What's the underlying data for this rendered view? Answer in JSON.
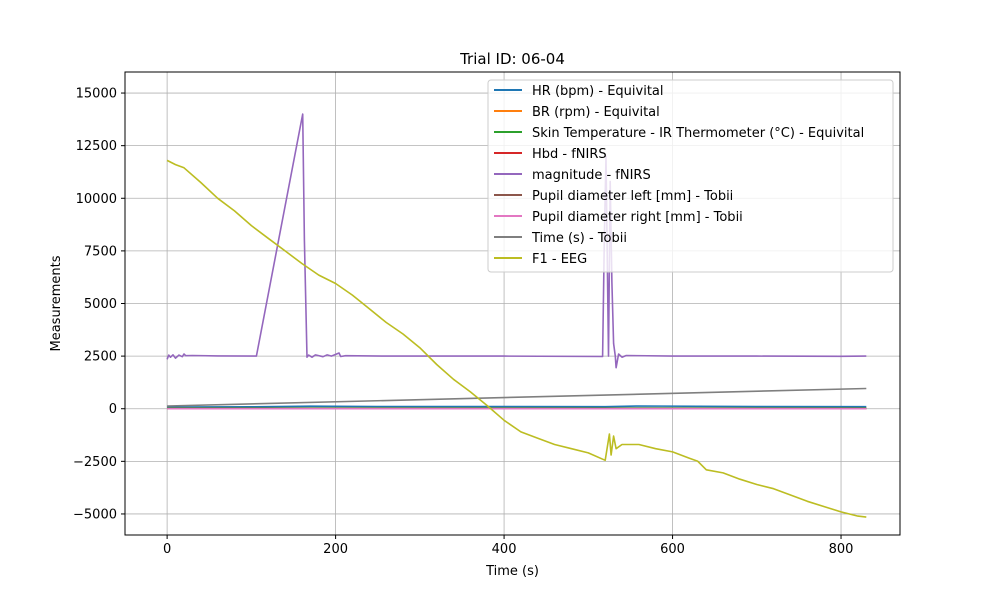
{
  "chart_data": {
    "type": "line",
    "title": "Trial ID: 06-04",
    "xlabel": "Time (s)",
    "ylabel": "Measurements",
    "xlim": [
      -50,
      870
    ],
    "ylim": [
      -6000,
      16000
    ],
    "xticks": [
      0,
      200,
      400,
      600,
      800
    ],
    "yticks": [
      -5000,
      -2500,
      0,
      2500,
      5000,
      7500,
      10000,
      12500,
      15000
    ],
    "xtick_labels": [
      "0",
      "200",
      "400",
      "600",
      "800"
    ],
    "ytick_labels": [
      "−5000",
      "−2500",
      "0",
      "2500",
      "5000",
      "7500",
      "10000",
      "12500",
      "15000"
    ],
    "grid": true,
    "legend_position": "top-right",
    "series": [
      {
        "name": "HR (bpm) - Equivital",
        "color": "#1f77b4",
        "x": [
          0,
          100,
          170,
          250,
          400,
          520,
          560,
          700,
          830
        ],
        "y": [
          80,
          90,
          120,
          105,
          100,
          95,
          130,
          100,
          95
        ]
      },
      {
        "name": "BR (rpm) - Equivital",
        "color": "#ff7f0e",
        "x": [
          0,
          830
        ],
        "y": [
          20,
          20
        ]
      },
      {
        "name": "Skin Temperature - IR Thermometer (°C) - Equivital",
        "color": "#2ca02c",
        "x": [
          0,
          830
        ],
        "y": [
          33,
          33
        ]
      },
      {
        "name": "Hbd - fNIRS",
        "color": "#d62728",
        "x": [
          0,
          830
        ],
        "y": [
          0,
          0
        ]
      },
      {
        "name": "magnitude - fNIRS",
        "color": "#9467bd",
        "x": [
          0,
          2,
          4,
          7,
          10,
          14,
          18,
          20,
          22,
          30,
          60,
          106,
          161,
          163,
          166,
          168,
          172,
          176,
          185,
          190,
          195,
          204,
          206,
          212,
          260,
          400,
          517,
          519,
          521,
          524,
          526,
          528,
          530,
          532,
          533,
          536,
          540,
          545,
          600,
          700,
          800,
          830
        ],
        "y": [
          2350,
          2550,
          2450,
          2560,
          2400,
          2550,
          2470,
          2600,
          2520,
          2530,
          2510,
          2500,
          14000,
          8000,
          2450,
          2550,
          2450,
          2560,
          2470,
          2560,
          2500,
          2650,
          2480,
          2520,
          2500,
          2500,
          2480,
          8000,
          12000,
          2500,
          10800,
          6000,
          3100,
          2500,
          1950,
          2600,
          2450,
          2530,
          2500,
          2500,
          2490,
          2500
        ]
      },
      {
        "name": "Pupil diameter left [mm] - Tobii",
        "color": "#8c564b",
        "x": [
          0,
          830
        ],
        "y": [
          3,
          3
        ]
      },
      {
        "name": "Pupil diameter right [mm] - Tobii",
        "color": "#e377c2",
        "x": [
          0,
          830
        ],
        "y": [
          3,
          3
        ]
      },
      {
        "name": "Time (s) - Tobii",
        "color": "#7f7f7f",
        "x": [
          0,
          830
        ],
        "y": [
          130,
          960
        ]
      },
      {
        "name": "F1 - EEG",
        "color": "#bcbd22",
        "x": [
          0,
          10,
          20,
          40,
          60,
          80,
          100,
          120,
          140,
          160,
          180,
          200,
          220,
          240,
          260,
          280,
          300,
          320,
          340,
          360,
          380,
          400,
          420,
          440,
          460,
          480,
          500,
          520,
          525,
          527,
          530,
          533,
          540,
          560,
          580,
          600,
          620,
          630,
          640,
          660,
          680,
          700,
          720,
          740,
          760,
          780,
          800,
          820,
          830
        ],
        "y": [
          11800,
          11600,
          11450,
          10750,
          10000,
          9400,
          8700,
          8100,
          7500,
          6900,
          6350,
          5950,
          5400,
          4750,
          4100,
          3550,
          2900,
          2100,
          1400,
          800,
          150,
          -550,
          -1100,
          -1400,
          -1700,
          -1900,
          -2100,
          -2450,
          -1200,
          -2200,
          -1300,
          -1900,
          -1700,
          -1700,
          -1900,
          -2050,
          -2350,
          -2500,
          -2900,
          -3050,
          -3350,
          -3600,
          -3800,
          -4100,
          -4400,
          -4650,
          -4900,
          -5100,
          -5150
        ]
      }
    ]
  }
}
